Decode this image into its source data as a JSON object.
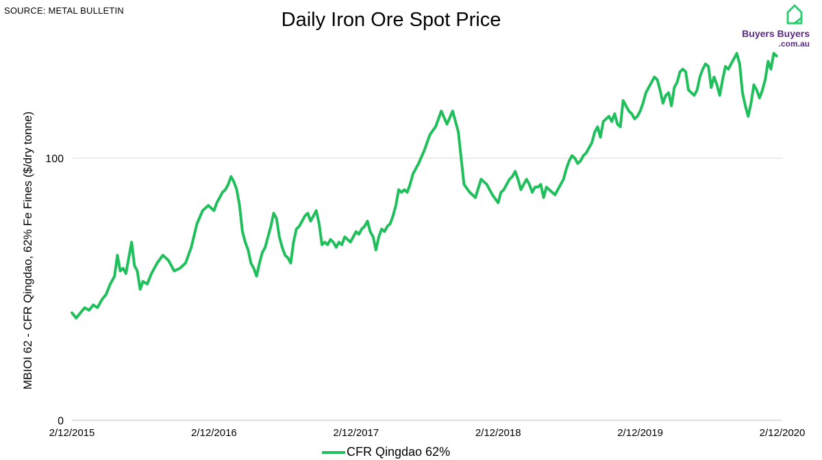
{
  "header": {
    "source": "SOURCE: METAL BULLETIN",
    "title": "Daily Iron Ore Spot Price"
  },
  "logo": {
    "name": "Buyers Buyers",
    "domain": ".com.au",
    "icon": "house-icon",
    "color": "#5a2a86",
    "accent": "#2ecc71"
  },
  "legend": {
    "label": "CFR Qingdao 62%"
  },
  "chart_data": {
    "type": "line",
    "title": "Daily Iron Ore Spot Price",
    "xlabel": "",
    "ylabel": "MBIOI 62 - CFR Qingdao, 62% Fe Fines ($/dry tonne)",
    "ylim": [
      0,
      140
    ],
    "xlim": [
      0,
      5
    ],
    "yticks": [
      0,
      100
    ],
    "xtick_labels": [
      "2/12/2015",
      "2/12/2016",
      "2/12/2017",
      "2/12/2018",
      "2/12/2019",
      "2/12/2020"
    ],
    "grid": true,
    "series": [
      {
        "name": "CFR Qingdao 62%",
        "color": "#1fbf5b",
        "x": [
          0.0,
          0.03,
          0.06,
          0.09,
          0.12,
          0.15,
          0.18,
          0.21,
          0.24,
          0.27,
          0.3,
          0.32,
          0.34,
          0.36,
          0.38,
          0.4,
          0.42,
          0.44,
          0.46,
          0.48,
          0.5,
          0.53,
          0.56,
          0.6,
          0.64,
          0.68,
          0.72,
          0.76,
          0.8,
          0.84,
          0.88,
          0.92,
          0.96,
          1.0,
          1.02,
          1.04,
          1.06,
          1.08,
          1.1,
          1.12,
          1.14,
          1.16,
          1.18,
          1.2,
          1.22,
          1.24,
          1.26,
          1.28,
          1.3,
          1.32,
          1.34,
          1.36,
          1.38,
          1.4,
          1.42,
          1.44,
          1.46,
          1.48,
          1.5,
          1.52,
          1.54,
          1.56,
          1.58,
          1.6,
          1.62,
          1.64,
          1.66,
          1.68,
          1.7,
          1.72,
          1.74,
          1.76,
          1.78,
          1.8,
          1.82,
          1.84,
          1.86,
          1.88,
          1.9,
          1.92,
          1.94,
          1.96,
          1.98,
          2.0,
          2.02,
          2.04,
          2.06,
          2.08,
          2.1,
          2.12,
          2.14,
          2.16,
          2.18,
          2.2,
          2.22,
          2.24,
          2.26,
          2.28,
          2.3,
          2.32,
          2.34,
          2.36,
          2.38,
          2.4,
          2.44,
          2.48,
          2.52,
          2.56,
          2.6,
          2.64,
          2.68,
          2.72,
          2.76,
          2.8,
          2.84,
          2.88,
          2.92,
          2.96,
          3.0,
          3.02,
          3.04,
          3.06,
          3.08,
          3.1,
          3.12,
          3.14,
          3.16,
          3.18,
          3.2,
          3.22,
          3.24,
          3.26,
          3.28,
          3.3,
          3.32,
          3.34,
          3.36,
          3.38,
          3.4,
          3.42,
          3.44,
          3.46,
          3.48,
          3.5,
          3.52,
          3.54,
          3.56,
          3.58,
          3.6,
          3.62,
          3.64,
          3.66,
          3.68,
          3.7,
          3.72,
          3.74,
          3.76,
          3.78,
          3.8,
          3.82,
          3.84,
          3.86,
          3.88,
          3.9,
          3.92,
          3.94,
          3.96,
          3.98,
          4.0,
          4.02,
          4.04,
          4.06,
          4.08,
          4.1,
          4.12,
          4.14,
          4.16,
          4.18,
          4.2,
          4.22,
          4.24,
          4.26,
          4.28,
          4.3,
          4.32,
          4.34,
          4.36,
          4.38,
          4.4,
          4.42,
          4.44,
          4.46,
          4.48,
          4.5,
          4.52,
          4.54,
          4.56,
          4.58,
          4.6,
          4.62,
          4.64,
          4.66,
          4.68,
          4.7,
          4.72,
          4.74,
          4.76,
          4.78,
          4.8,
          4.82,
          4.84,
          4.86,
          4.88,
          4.9,
          4.92,
          4.94,
          4.96
        ],
        "y": [
          41,
          39,
          41,
          43,
          42,
          44,
          43,
          46,
          48,
          52,
          55,
          63,
          57,
          58,
          56,
          62,
          68,
          59,
          57,
          50,
          53,
          52,
          56,
          60,
          63,
          61,
          57,
          58,
          60,
          66,
          75,
          80,
          82,
          80,
          83,
          85,
          87,
          88,
          90,
          93,
          91,
          88,
          82,
          72,
          68,
          65,
          60,
          58,
          55,
          60,
          64,
          66,
          70,
          74,
          79,
          77,
          70,
          66,
          63,
          62,
          60,
          68,
          73,
          74,
          76,
          78,
          79,
          76,
          78,
          80,
          75,
          67,
          68,
          67,
          69,
          68,
          66,
          68,
          67,
          70,
          69,
          68,
          70,
          72,
          71,
          73,
          74,
          76,
          72,
          70,
          65,
          70,
          73,
          72,
          74,
          75,
          78,
          82,
          88,
          87,
          88,
          87,
          90,
          94,
          98,
          103,
          109,
          112,
          118,
          113,
          118,
          110,
          90,
          87,
          85,
          92,
          90,
          86,
          83,
          87,
          88,
          90,
          92,
          93,
          95,
          92,
          88,
          90,
          92,
          90,
          87,
          89,
          89,
          90,
          85,
          89,
          88,
          87,
          86,
          88,
          90,
          92,
          96,
          99,
          101,
          100,
          98,
          99,
          101,
          102,
          104,
          106,
          110,
          112,
          108,
          114,
          115,
          116,
          114,
          117,
          113,
          112,
          122,
          120,
          118,
          117,
          115,
          116,
          118,
          121,
          125,
          127,
          129,
          131,
          130,
          126,
          121,
          124,
          125,
          120,
          127,
          129,
          133,
          134,
          133,
          126,
          125,
          124,
          126,
          131,
          134,
          136,
          135,
          127,
          131,
          128,
          124,
          130,
          135,
          134,
          136,
          138,
          140,
          136,
          125,
          120,
          116,
          121,
          128,
          126,
          123,
          126,
          130,
          137,
          134,
          140,
          139
        ]
      }
    ]
  }
}
